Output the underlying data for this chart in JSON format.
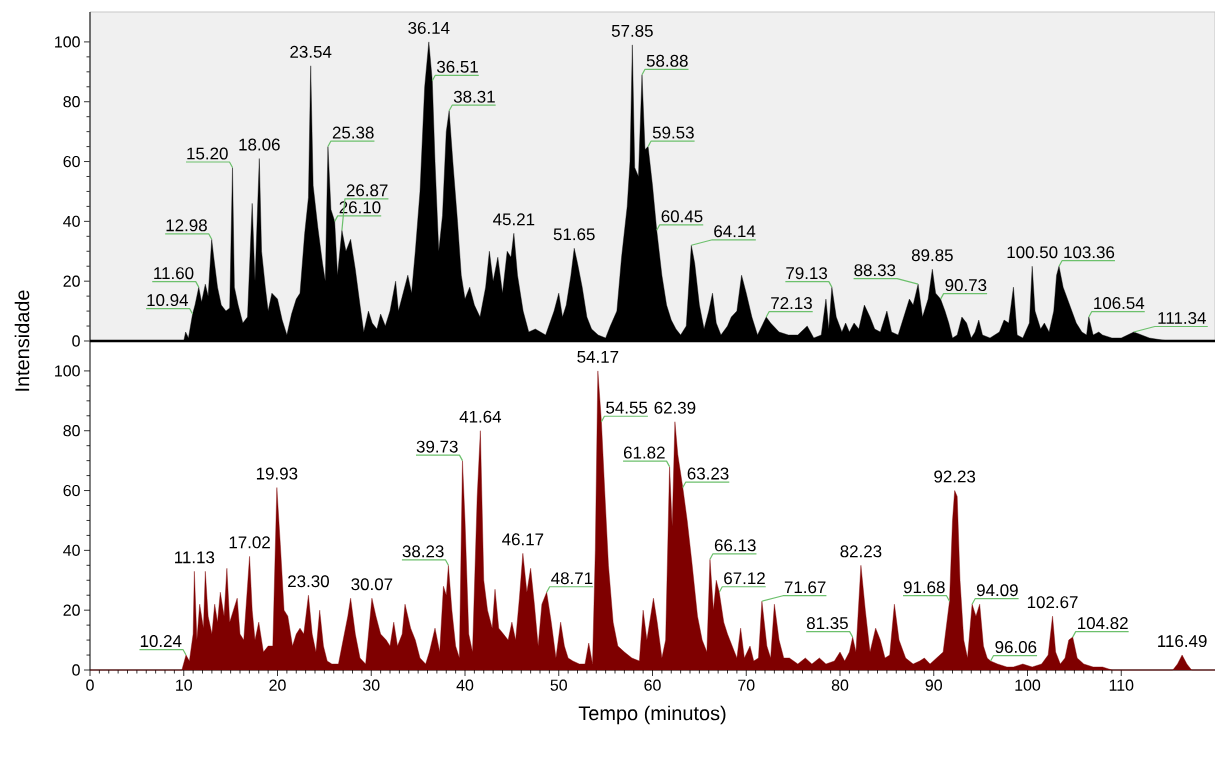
{
  "chart_data": [
    {
      "type": "area",
      "ylabel": "Intensidade",
      "color": "#000000",
      "xlim": [
        0,
        120
      ],
      "ylim": [
        0,
        110
      ],
      "xticks": [
        0,
        10,
        20,
        30,
        40,
        50,
        60,
        70,
        80,
        90,
        100,
        110
      ],
      "yticks": [
        0,
        20,
        40,
        60,
        80,
        100
      ],
      "tick_labels": "y",
      "x": [
        0,
        10.0,
        10.2,
        10.5,
        10.94,
        11.2,
        11.6,
        11.9,
        12.3,
        12.6,
        12.98,
        13.2,
        13.6,
        14.0,
        14.5,
        14.9,
        15.2,
        15.4,
        15.8,
        16.3,
        16.8,
        17.3,
        17.6,
        18.06,
        18.3,
        18.7,
        19.0,
        19.4,
        20.0,
        20.5,
        21.0,
        21.5,
        22.0,
        22.4,
        22.9,
        23.3,
        23.54,
        23.8,
        24.3,
        24.8,
        25.1,
        25.38,
        25.7,
        26.1,
        26.4,
        26.87,
        27.3,
        27.8,
        28.3,
        28.8,
        29.2,
        29.7,
        30.1,
        30.6,
        31.0,
        31.5,
        32.0,
        32.6,
        32.9,
        33.4,
        33.9,
        34.3,
        34.7,
        35.2,
        35.7,
        36.14,
        36.51,
        36.8,
        37.2,
        37.6,
        38.0,
        38.31,
        38.7,
        39.2,
        39.6,
        40.0,
        40.5,
        41.0,
        41.6,
        42.2,
        42.6,
        43.0,
        43.5,
        44.0,
        44.5,
        44.9,
        45.21,
        45.6,
        46.2,
        46.8,
        47.5,
        48.6,
        49.5,
        50.0,
        50.4,
        50.8,
        51.3,
        51.65,
        52.0,
        52.5,
        53.0,
        53.5,
        54.2,
        55.0,
        55.5,
        56.2,
        56.7,
        57.3,
        57.6,
        57.85,
        58.1,
        58.5,
        58.88,
        59.2,
        59.53,
        60.0,
        60.45,
        61.0,
        61.5,
        62.0,
        62.5,
        63.0,
        63.6,
        64.14,
        64.5,
        65.0,
        65.5,
        66.0,
        66.4,
        66.8,
        67.3,
        68.0,
        68.4,
        69.0,
        69.5,
        70.0,
        70.6,
        71.2,
        72.13,
        72.6,
        73.5,
        74.5,
        75.5,
        76.5,
        77.2,
        78.0,
        78.5,
        78.8,
        79.13,
        79.6,
        80.2,
        80.6,
        81.0,
        81.5,
        82.0,
        82.6,
        83.2,
        83.7,
        84.3,
        85.0,
        85.5,
        86.2,
        86.8,
        87.4,
        87.8,
        88.33,
        88.8,
        89.4,
        89.85,
        90.2,
        90.73,
        91.2,
        91.6,
        92.0,
        92.5,
        93.0,
        93.5,
        94.0,
        94.4,
        94.8,
        95.2,
        96.0,
        97.0,
        97.5,
        98.0,
        98.5,
        98.9,
        99.5,
        100.2,
        100.5,
        100.8,
        101.4,
        101.8,
        102.3,
        102.8,
        103.1,
        103.36,
        103.8,
        104.5,
        105.2,
        105.8,
        106.3,
        106.54,
        107.0,
        107.6,
        108.0,
        109.0,
        110.0,
        111.34,
        113.0,
        115.0,
        120
      ],
      "values": [
        0,
        0,
        3,
        1,
        9,
        12,
        18,
        13,
        19,
        15,
        34,
        28,
        18,
        12,
        10,
        11,
        58,
        18,
        12,
        6,
        8,
        46,
        20,
        61,
        30,
        18,
        10,
        16,
        14,
        7,
        2,
        9,
        14,
        16,
        36,
        48,
        92,
        52,
        38,
        26,
        20,
        65,
        44,
        40,
        22,
        37,
        30,
        34,
        24,
        12,
        3,
        10,
        6,
        4,
        9,
        5,
        10,
        20,
        10,
        16,
        22,
        16,
        30,
        50,
        85,
        100,
        87,
        60,
        30,
        42,
        70,
        77,
        60,
        40,
        22,
        14,
        18,
        12,
        8,
        18,
        30,
        20,
        28,
        16,
        30,
        28,
        36,
        22,
        10,
        3,
        4,
        2,
        10,
        16,
        8,
        12,
        22,
        31,
        26,
        18,
        8,
        4,
        2,
        1,
        5,
        10,
        28,
        45,
        60,
        99,
        58,
        55,
        89,
        64,
        65,
        52,
        37,
        22,
        12,
        7,
        4,
        2,
        5,
        32,
        26,
        12,
        4,
        10,
        16,
        6,
        2,
        5,
        8,
        10,
        22,
        16,
        8,
        2,
        8,
        6,
        3,
        2,
        2,
        5,
        1,
        2,
        14,
        4,
        18,
        8,
        3,
        6,
        3,
        6,
        4,
        12,
        8,
        4,
        3,
        10,
        3,
        2,
        8,
        14,
        12,
        19,
        8,
        14,
        24,
        16,
        14,
        10,
        6,
        1,
        2,
        8,
        6,
        1,
        3,
        7,
        2,
        1,
        3,
        7,
        6,
        18,
        2,
        1,
        6,
        25,
        10,
        4,
        6,
        3,
        10,
        22,
        25,
        18,
        12,
        6,
        3,
        2,
        8,
        2,
        3,
        2,
        1,
        1,
        3,
        1,
        0,
        0
      ],
      "annotations": [
        {
          "text": "10.94",
          "x": 10.94,
          "y": 9
        },
        {
          "text": "11.60",
          "x": 11.6,
          "y": 18
        },
        {
          "text": "12.98",
          "x": 12.98,
          "y": 34
        },
        {
          "text": "15.20",
          "x": 15.2,
          "y": 58
        },
        {
          "text": "18.06",
          "x": 18.06,
          "y": 61
        },
        {
          "text": "23.54",
          "x": 23.54,
          "y": 92
        },
        {
          "text": "25.38",
          "x": 25.38,
          "y": 65
        },
        {
          "text": "26.10",
          "x": 26.1,
          "y": 40
        },
        {
          "text": "26.87",
          "x": 26.87,
          "y": 37
        },
        {
          "text": "36.14",
          "x": 36.14,
          "y": 100
        },
        {
          "text": "36.51",
          "x": 36.51,
          "y": 87
        },
        {
          "text": "38.31",
          "x": 38.31,
          "y": 77
        },
        {
          "text": "45.21",
          "x": 45.21,
          "y": 36
        },
        {
          "text": "51.65",
          "x": 51.65,
          "y": 31
        },
        {
          "text": "57.85",
          "x": 57.85,
          "y": 99
        },
        {
          "text": "58.88",
          "x": 58.88,
          "y": 89
        },
        {
          "text": "59.53",
          "x": 59.53,
          "y": 65
        },
        {
          "text": "60.45",
          "x": 60.45,
          "y": 37
        },
        {
          "text": "64.14",
          "x": 64.14,
          "y": 32
        },
        {
          "text": "72.13",
          "x": 72.13,
          "y": 8
        },
        {
          "text": "79.13",
          "x": 79.13,
          "y": 18
        },
        {
          "text": "88.33",
          "x": 88.33,
          "y": 19
        },
        {
          "text": "89.85",
          "x": 89.85,
          "y": 24
        },
        {
          "text": "90.73",
          "x": 90.73,
          "y": 14
        },
        {
          "text": "100.50",
          "x": 100.5,
          "y": 25
        },
        {
          "text": "103.36",
          "x": 103.36,
          "y": 25
        },
        {
          "text": "106.54",
          "x": 106.54,
          "y": 8
        },
        {
          "text": "111.34",
          "x": 111.34,
          "y": 3
        }
      ]
    },
    {
      "type": "area",
      "xlabel": "Tempo (minutos)",
      "color": "#7f0000",
      "xlim": [
        0,
        120
      ],
      "ylim": [
        0,
        110
      ],
      "xticks": [
        0,
        10,
        20,
        30,
        40,
        50,
        60,
        70,
        80,
        90,
        100,
        110
      ],
      "yticks": [
        0,
        20,
        40,
        60,
        80,
        100
      ],
      "x": [
        0,
        9.8,
        10.24,
        10.6,
        11.0,
        11.13,
        11.4,
        11.7,
        12.1,
        12.3,
        12.6,
        13.0,
        13.3,
        13.6,
        13.9,
        14.3,
        14.6,
        14.9,
        15.3,
        15.7,
        16.0,
        16.4,
        16.8,
        17.02,
        17.3,
        17.6,
        18.0,
        18.5,
        19.0,
        19.5,
        19.93,
        20.3,
        20.7,
        21.1,
        21.6,
        22.0,
        22.4,
        22.8,
        23.3,
        23.7,
        24.1,
        24.5,
        24.9,
        25.3,
        25.8,
        26.5,
        27.0,
        27.5,
        27.8,
        28.3,
        28.8,
        29.4,
        30.07,
        30.5,
        31.0,
        31.6,
        32.0,
        32.4,
        32.8,
        33.3,
        33.6,
        34.2,
        34.7,
        35.2,
        35.8,
        36.2,
        36.8,
        37.3,
        37.7,
        38.0,
        38.23,
        38.6,
        39.0,
        39.4,
        39.73,
        40.0,
        40.4,
        40.8,
        41.3,
        41.64,
        42.0,
        42.4,
        42.9,
        43.2,
        43.6,
        44.1,
        44.6,
        45.0,
        45.4,
        45.8,
        46.17,
        46.6,
        47.0,
        47.4,
        47.8,
        48.2,
        48.71,
        49.2,
        49.7,
        50.2,
        50.6,
        51.0,
        51.5,
        52.2,
        52.8,
        53.2,
        53.6,
        53.9,
        54.17,
        54.55,
        54.9,
        55.3,
        55.8,
        56.3,
        57.0,
        57.8,
        58.6,
        59.0,
        59.4,
        59.8,
        60.1,
        60.5,
        61.0,
        61.4,
        61.82,
        62.1,
        62.39,
        62.7,
        63.23,
        63.7,
        64.2,
        64.8,
        65.3,
        65.8,
        66.13,
        66.5,
        66.8,
        67.12,
        67.6,
        68.0,
        68.5,
        69.0,
        69.4,
        69.8,
        70.4,
        70.8,
        71.3,
        71.67,
        72.2,
        72.6,
        73.0,
        73.5,
        74.0,
        74.6,
        75.5,
        76.3,
        77.0,
        77.8,
        78.5,
        79.4,
        80.0,
        80.5,
        81.0,
        81.35,
        81.7,
        82.23,
        82.7,
        83.2,
        83.8,
        84.3,
        84.8,
        85.3,
        85.8,
        86.3,
        87.0,
        87.8,
        88.5,
        89.0,
        89.6,
        90.3,
        91.0,
        91.68,
        92.0,
        92.23,
        92.5,
        92.8,
        93.2,
        93.6,
        94.09,
        94.5,
        94.9,
        95.3,
        95.7,
        96.06,
        96.8,
        97.8,
        98.5,
        99.5,
        100.5,
        101.5,
        102.2,
        102.67,
        103.0,
        103.5,
        104.0,
        104.4,
        104.82,
        105.3,
        106.0,
        107.0,
        108.0,
        109.0,
        115.5,
        116.0,
        116.49,
        117.0,
        117.5,
        120
      ],
      "values": [
        0,
        0,
        5,
        3,
        12,
        33,
        10,
        22,
        14,
        33,
        18,
        12,
        22,
        16,
        26,
        18,
        34,
        16,
        20,
        24,
        12,
        10,
        28,
        38,
        20,
        10,
        16,
        6,
        8,
        8,
        61,
        42,
        20,
        18,
        8,
        12,
        14,
        12,
        25,
        12,
        6,
        20,
        8,
        3,
        2,
        2,
        10,
        18,
        24,
        12,
        4,
        2,
        24,
        18,
        12,
        10,
        8,
        16,
        8,
        12,
        22,
        14,
        10,
        4,
        2,
        6,
        14,
        6,
        28,
        25,
        35,
        20,
        8,
        4,
        70,
        50,
        12,
        6,
        58,
        80,
        30,
        20,
        14,
        27,
        14,
        12,
        10,
        16,
        10,
        24,
        39,
        26,
        34,
        22,
        8,
        22,
        26,
        16,
        4,
        16,
        8,
        4,
        3,
        2,
        2,
        9,
        2,
        40,
        100,
        83,
        60,
        35,
        16,
        8,
        6,
        4,
        3,
        20,
        10,
        18,
        24,
        16,
        4,
        10,
        68,
        48,
        83,
        72,
        61,
        50,
        36,
        18,
        10,
        6,
        37,
        20,
        30,
        26,
        16,
        12,
        8,
        4,
        14,
        4,
        8,
        3,
        4,
        23,
        8,
        4,
        22,
        10,
        4,
        4,
        2,
        4,
        2,
        4,
        2,
        3,
        6,
        3,
        6,
        11,
        6,
        35,
        20,
        6,
        14,
        10,
        4,
        5,
        22,
        10,
        4,
        2,
        3,
        4,
        2,
        4,
        6,
        23,
        50,
        60,
        58,
        30,
        10,
        4,
        22,
        18,
        22,
        8,
        4,
        3,
        2,
        1,
        1,
        2,
        1,
        2,
        5,
        18,
        6,
        2,
        4,
        10,
        11,
        4,
        2,
        1,
        1,
        0,
        0,
        2,
        5,
        2,
        0,
        0
      ],
      "annotations": [
        {
          "text": "10.24",
          "x": 10.24,
          "y": 5
        },
        {
          "text": "11.13",
          "x": 11.13,
          "y": 33
        },
        {
          "text": "17.02",
          "x": 17.02,
          "y": 38
        },
        {
          "text": "19.93",
          "x": 19.93,
          "y": 61
        },
        {
          "text": "23.30",
          "x": 23.3,
          "y": 25
        },
        {
          "text": "30.07",
          "x": 30.07,
          "y": 24
        },
        {
          "text": "38.23",
          "x": 38.23,
          "y": 35
        },
        {
          "text": "39.73",
          "x": 39.73,
          "y": 70
        },
        {
          "text": "41.64",
          "x": 41.64,
          "y": 80
        },
        {
          "text": "46.17",
          "x": 46.17,
          "y": 39
        },
        {
          "text": "48.71",
          "x": 48.71,
          "y": 26
        },
        {
          "text": "54.17",
          "x": 54.17,
          "y": 100
        },
        {
          "text": "54.55",
          "x": 54.55,
          "y": 83
        },
        {
          "text": "61.82",
          "x": 61.82,
          "y": 68
        },
        {
          "text": "62.39",
          "x": 62.39,
          "y": 83
        },
        {
          "text": "63.23",
          "x": 63.23,
          "y": 61
        },
        {
          "text": "66.13",
          "x": 66.13,
          "y": 37
        },
        {
          "text": "67.12",
          "x": 67.12,
          "y": 26
        },
        {
          "text": "71.67",
          "x": 71.67,
          "y": 23
        },
        {
          "text": "81.35",
          "x": 81.35,
          "y": 11
        },
        {
          "text": "82.23",
          "x": 82.23,
          "y": 35
        },
        {
          "text": "91.68",
          "x": 91.68,
          "y": 23
        },
        {
          "text": "92.23",
          "x": 92.23,
          "y": 60
        },
        {
          "text": "94.09",
          "x": 94.09,
          "y": 22
        },
        {
          "text": "96.06",
          "x": 96.06,
          "y": 3
        },
        {
          "text": "102.67",
          "x": 102.67,
          "y": 18
        },
        {
          "text": "104.82",
          "x": 104.82,
          "y": 11
        },
        {
          "text": "116.49",
          "x": 116.49,
          "y": 5
        }
      ]
    }
  ]
}
